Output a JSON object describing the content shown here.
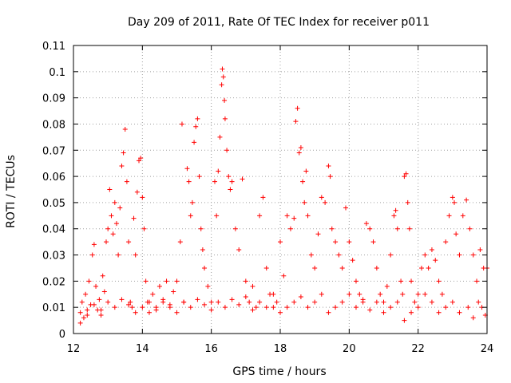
{
  "chart_data": {
    "type": "scatter",
    "title": "Day 209 of 2011, Rate Of TEC Index for receiver p011",
    "xlabel": "GPS time / hours",
    "ylabel": "ROTI / TECUs",
    "xlim": [
      12,
      24
    ],
    "ylim": [
      0,
      0.11
    ],
    "x_ticks": [
      12,
      14,
      16,
      18,
      20,
      22,
      24
    ],
    "y_ticks": [
      0,
      0.01,
      0.02,
      0.03,
      0.04,
      0.05,
      0.06,
      0.07,
      0.08,
      0.09,
      0.1,
      0.11
    ],
    "x_tick_labels": [
      "12",
      "14",
      "16",
      "18",
      "20",
      "22",
      "24"
    ],
    "y_tick_labels": [
      "0",
      "0.01",
      "0.02",
      "0.03",
      "0.04",
      "0.05",
      "0.06",
      "0.07",
      "0.08",
      "0.09",
      "0.1",
      "0.11"
    ],
    "grid": true,
    "marker": "plus",
    "color": "#ff0000",
    "series": [
      {
        "points": [
          [
            12.2,
            0.008
          ],
          [
            12.25,
            0.012
          ],
          [
            12.3,
            0.006
          ],
          [
            12.35,
            0.015
          ],
          [
            12.4,
            0.009
          ],
          [
            12.45,
            0.02
          ],
          [
            12.5,
            0.011
          ],
          [
            12.55,
            0.03
          ],
          [
            12.6,
            0.034
          ],
          [
            12.65,
            0.018
          ],
          [
            12.7,
            0.009
          ],
          [
            12.75,
            0.013
          ],
          [
            12.8,
            0.007
          ],
          [
            12.85,
            0.022
          ],
          [
            12.9,
            0.016
          ],
          [
            12.95,
            0.035
          ],
          [
            13.0,
            0.04
          ],
          [
            13.05,
            0.055
          ],
          [
            13.1,
            0.045
          ],
          [
            13.15,
            0.038
          ],
          [
            13.2,
            0.05
          ],
          [
            13.25,
            0.042
          ],
          [
            13.3,
            0.03
          ],
          [
            13.35,
            0.048
          ],
          [
            13.4,
            0.064
          ],
          [
            13.45,
            0.069
          ],
          [
            13.5,
            0.078
          ],
          [
            13.55,
            0.058
          ],
          [
            13.6,
            0.035
          ],
          [
            13.65,
            0.012
          ],
          [
            13.7,
            0.01
          ],
          [
            13.75,
            0.044
          ],
          [
            13.8,
            0.03
          ],
          [
            13.85,
            0.054
          ],
          [
            13.9,
            0.066
          ],
          [
            13.95,
            0.067
          ],
          [
            14.0,
            0.052
          ],
          [
            14.05,
            0.04
          ],
          [
            14.1,
            0.02
          ],
          [
            14.15,
            0.012
          ],
          [
            14.2,
            0.008
          ],
          [
            14.3,
            0.015
          ],
          [
            14.4,
            0.01
          ],
          [
            14.5,
            0.018
          ],
          [
            14.6,
            0.012
          ],
          [
            14.7,
            0.02
          ],
          [
            14.8,
            0.01
          ],
          [
            14.9,
            0.016
          ],
          [
            15.0,
            0.02
          ],
          [
            15.1,
            0.035
          ],
          [
            15.15,
            0.08
          ],
          [
            15.2,
            0.012
          ],
          [
            15.3,
            0.063
          ],
          [
            15.35,
            0.058
          ],
          [
            15.4,
            0.045
          ],
          [
            15.45,
            0.05
          ],
          [
            15.5,
            0.073
          ],
          [
            15.55,
            0.079
          ],
          [
            15.6,
            0.082
          ],
          [
            15.65,
            0.06
          ],
          [
            15.7,
            0.04
          ],
          [
            15.75,
            0.032
          ],
          [
            15.8,
            0.025
          ],
          [
            15.9,
            0.018
          ],
          [
            16.0,
            0.012
          ],
          [
            16.1,
            0.058
          ],
          [
            16.15,
            0.045
          ],
          [
            16.2,
            0.062
          ],
          [
            16.25,
            0.075
          ],
          [
            16.3,
            0.095
          ],
          [
            16.32,
            0.101
          ],
          [
            16.35,
            0.098
          ],
          [
            16.38,
            0.089
          ],
          [
            16.4,
            0.082
          ],
          [
            16.45,
            0.07
          ],
          [
            16.5,
            0.06
          ],
          [
            16.55,
            0.055
          ],
          [
            16.6,
            0.058
          ],
          [
            16.7,
            0.04
          ],
          [
            16.8,
            0.032
          ],
          [
            16.9,
            0.059
          ],
          [
            17.0,
            0.02
          ],
          [
            17.1,
            0.012
          ],
          [
            17.2,
            0.018
          ],
          [
            17.3,
            0.01
          ],
          [
            17.4,
            0.045
          ],
          [
            17.5,
            0.052
          ],
          [
            17.6,
            0.025
          ],
          [
            17.7,
            0.015
          ],
          [
            17.8,
            0.01
          ],
          [
            17.9,
            0.012
          ],
          [
            18.0,
            0.035
          ],
          [
            18.1,
            0.022
          ],
          [
            18.2,
            0.045
          ],
          [
            18.3,
            0.04
          ],
          [
            18.4,
            0.044
          ],
          [
            18.45,
            0.081
          ],
          [
            18.5,
            0.086
          ],
          [
            18.55,
            0.069
          ],
          [
            18.6,
            0.071
          ],
          [
            18.65,
            0.058
          ],
          [
            18.7,
            0.05
          ],
          [
            18.75,
            0.062
          ],
          [
            18.8,
            0.045
          ],
          [
            18.9,
            0.03
          ],
          [
            19.0,
            0.025
          ],
          [
            19.1,
            0.038
          ],
          [
            19.2,
            0.052
          ],
          [
            19.3,
            0.05
          ],
          [
            19.4,
            0.064
          ],
          [
            19.45,
            0.06
          ],
          [
            19.5,
            0.04
          ],
          [
            19.6,
            0.035
          ],
          [
            19.7,
            0.03
          ],
          [
            19.8,
            0.025
          ],
          [
            19.9,
            0.048
          ],
          [
            20.0,
            0.035
          ],
          [
            20.1,
            0.028
          ],
          [
            20.2,
            0.02
          ],
          [
            20.3,
            0.015
          ],
          [
            20.4,
            0.012
          ],
          [
            20.5,
            0.042
          ],
          [
            20.6,
            0.04
          ],
          [
            20.7,
            0.035
          ],
          [
            20.8,
            0.025
          ],
          [
            20.9,
            0.015
          ],
          [
            21.0,
            0.012
          ],
          [
            21.1,
            0.018
          ],
          [
            21.2,
            0.03
          ],
          [
            21.3,
            0.045
          ],
          [
            21.35,
            0.047
          ],
          [
            21.4,
            0.04
          ],
          [
            21.5,
            0.02
          ],
          [
            21.55,
            0.015
          ],
          [
            21.6,
            0.06
          ],
          [
            21.65,
            0.061
          ],
          [
            21.7,
            0.05
          ],
          [
            21.75,
            0.04
          ],
          [
            21.8,
            0.02
          ],
          [
            21.9,
            0.012
          ],
          [
            22.0,
            0.015
          ],
          [
            22.1,
            0.025
          ],
          [
            22.2,
            0.03
          ],
          [
            22.3,
            0.025
          ],
          [
            22.4,
            0.032
          ],
          [
            22.5,
            0.028
          ],
          [
            22.6,
            0.02
          ],
          [
            22.7,
            0.015
          ],
          [
            22.8,
            0.035
          ],
          [
            22.9,
            0.045
          ],
          [
            23.0,
            0.052
          ],
          [
            23.05,
            0.05
          ],
          [
            23.1,
            0.038
          ],
          [
            23.2,
            0.03
          ],
          [
            23.3,
            0.045
          ],
          [
            23.4,
            0.051
          ],
          [
            23.5,
            0.04
          ],
          [
            23.6,
            0.03
          ],
          [
            23.7,
            0.02
          ],
          [
            23.8,
            0.032
          ],
          [
            23.9,
            0.025
          ],
          [
            24.0,
            0.025
          ],
          [
            23.95,
            0.007
          ],
          [
            23.85,
            0.01
          ],
          [
            23.75,
            0.012
          ],
          [
            23.6,
            0.006
          ],
          [
            23.45,
            0.01
          ],
          [
            23.2,
            0.008
          ],
          [
            23.0,
            0.012
          ],
          [
            22.8,
            0.01
          ],
          [
            22.6,
            0.008
          ],
          [
            22.4,
            0.012
          ],
          [
            22.2,
            0.015
          ],
          [
            22.0,
            0.01
          ],
          [
            21.8,
            0.008
          ],
          [
            21.6,
            0.005
          ],
          [
            21.4,
            0.012
          ],
          [
            21.2,
            0.01
          ],
          [
            21.0,
            0.008
          ],
          [
            20.8,
            0.012
          ],
          [
            20.6,
            0.009
          ],
          [
            20.4,
            0.013
          ],
          [
            20.2,
            0.01
          ],
          [
            20.0,
            0.015
          ],
          [
            19.8,
            0.012
          ],
          [
            19.6,
            0.01
          ],
          [
            19.4,
            0.008
          ],
          [
            19.2,
            0.015
          ],
          [
            19.0,
            0.012
          ],
          [
            18.8,
            0.01
          ],
          [
            18.6,
            0.014
          ],
          [
            18.4,
            0.012
          ],
          [
            18.2,
            0.01
          ],
          [
            18.0,
            0.008
          ],
          [
            17.8,
            0.015
          ],
          [
            17.6,
            0.01
          ],
          [
            17.4,
            0.012
          ],
          [
            17.2,
            0.009
          ],
          [
            17.0,
            0.014
          ],
          [
            16.8,
            0.011
          ],
          [
            16.6,
            0.013
          ],
          [
            16.4,
            0.01
          ],
          [
            16.2,
            0.012
          ],
          [
            16.0,
            0.009
          ],
          [
            15.8,
            0.011
          ],
          [
            15.6,
            0.013
          ],
          [
            15.4,
            0.01
          ],
          [
            15.2,
            0.012
          ],
          [
            15.0,
            0.008
          ],
          [
            14.8,
            0.011
          ],
          [
            14.6,
            0.013
          ],
          [
            14.4,
            0.009
          ],
          [
            14.2,
            0.012
          ],
          [
            14.0,
            0.01
          ],
          [
            13.8,
            0.008
          ],
          [
            13.6,
            0.011
          ],
          [
            13.4,
            0.013
          ],
          [
            13.2,
            0.01
          ],
          [
            13.0,
            0.012
          ],
          [
            12.8,
            0.009
          ],
          [
            12.6,
            0.011
          ],
          [
            12.4,
            0.007
          ],
          [
            12.2,
            0.004
          ]
        ]
      }
    ]
  }
}
